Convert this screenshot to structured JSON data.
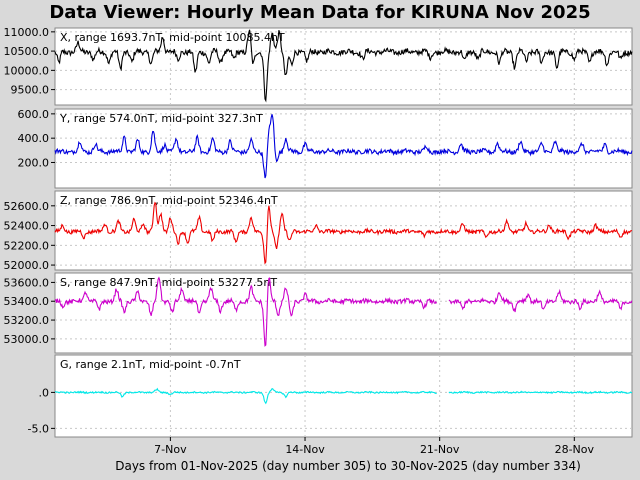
{
  "title": "Data Viewer:  Hourly Mean Data for KIRUNA Nov 2025",
  "xlabel": "Days from 01-Nov-2025 (day number 305) to 30-Nov-2025 (day number 334)",
  "chart_data": {
    "type": "line",
    "x_ticks": [
      "7-Nov",
      "14-Nov",
      "21-Nov",
      "28-Nov"
    ],
    "x_tick_days": [
      7,
      14,
      21,
      28
    ],
    "x_range_days": [
      1,
      31
    ],
    "grid": true,
    "panels": [
      {
        "name": "X",
        "label": "X, range 1693.7nT, mid-point 10085.4nT",
        "color": "#000000",
        "ylim": [
          9100,
          11100
        ],
        "yticks": [
          9500,
          10000,
          10500,
          11000
        ],
        "ytick_labels": [
          "9500.0",
          "10000.0",
          "10500.0",
          "11000.0"
        ],
        "baseline": 10480,
        "spikes": [
          [
            1.2,
            -300
          ],
          [
            2.2,
            220
          ],
          [
            3.0,
            -200
          ],
          [
            3.8,
            -280
          ],
          [
            4.4,
            -450
          ],
          [
            5.0,
            -260
          ],
          [
            6.0,
            -300
          ],
          [
            6.6,
            400
          ],
          [
            7.4,
            -200
          ],
          [
            8.3,
            -550
          ],
          [
            9.0,
            -300
          ],
          [
            9.6,
            -280
          ],
          [
            10.3,
            -200
          ],
          [
            11.1,
            550
          ],
          [
            11.3,
            -350
          ],
          [
            11.95,
            -1230
          ],
          [
            12.3,
            450
          ],
          [
            12.65,
            520
          ],
          [
            13.0,
            -650
          ],
          [
            13.3,
            -350
          ],
          [
            14.1,
            -250
          ],
          [
            17.0,
            -180
          ],
          [
            20.5,
            -150
          ],
          [
            22.3,
            -250
          ],
          [
            23.0,
            -200
          ],
          [
            24.1,
            -300
          ],
          [
            24.9,
            -400
          ],
          [
            25.5,
            -250
          ],
          [
            26.3,
            -300
          ],
          [
            27.1,
            -420
          ],
          [
            28.0,
            -200
          ],
          [
            28.8,
            -260
          ],
          [
            29.7,
            -300
          ],
          [
            30.4,
            -200
          ]
        ],
        "noise": 70,
        "gaps": []
      },
      {
        "name": "Y",
        "label": "Y, range 574.0nT, mid-point 327.3nT",
        "color": "#0000dd",
        "ylim": [
          -10,
          640
        ],
        "yticks": [
          200,
          400,
          600
        ],
        "ytick_labels": [
          "200.0",
          "400.0",
          "600.0"
        ],
        "baseline": 290,
        "spikes": [
          [
            2.3,
            80
          ],
          [
            3.1,
            60
          ],
          [
            4.6,
            120
          ],
          [
            5.3,
            90
          ],
          [
            6.1,
            170
          ],
          [
            6.7,
            60
          ],
          [
            7.3,
            100
          ],
          [
            8.4,
            110
          ],
          [
            9.2,
            100
          ],
          [
            10.1,
            80
          ],
          [
            11.2,
            90
          ],
          [
            11.95,
            -250
          ],
          [
            12.1,
            180
          ],
          [
            12.3,
            300
          ],
          [
            12.5,
            -80
          ],
          [
            13.0,
            110
          ],
          [
            14.0,
            60
          ],
          [
            20.3,
            40
          ],
          [
            22.1,
            60
          ],
          [
            24.0,
            70
          ],
          [
            25.2,
            80
          ],
          [
            26.3,
            60
          ],
          [
            27.0,
            80
          ],
          [
            28.4,
            60
          ],
          [
            29.6,
            60
          ]
        ],
        "noise": 18,
        "gaps": []
      },
      {
        "name": "Z",
        "label": "Z, range 786.9nT, mid-point 52346.4nT",
        "color": "#ee0000",
        "ylim": [
          51950,
          52750
        ],
        "yticks": [
          52000,
          52200,
          52400,
          52600
        ],
        "ytick_labels": [
          "52000.0",
          "52200.0",
          "52400.0",
          "52600.0"
        ],
        "baseline": 52340,
        "spikes": [
          [
            1.4,
            60
          ],
          [
            2.5,
            -60
          ],
          [
            3.6,
            80
          ],
          [
            4.3,
            100
          ],
          [
            5.1,
            120
          ],
          [
            5.6,
            80
          ],
          [
            6.2,
            300
          ],
          [
            6.5,
            180
          ],
          [
            7.0,
            140
          ],
          [
            7.4,
            -120
          ],
          [
            7.9,
            -110
          ],
          [
            8.5,
            140
          ],
          [
            9.2,
            -100
          ],
          [
            10.4,
            -110
          ],
          [
            11.2,
            140
          ],
          [
            11.95,
            -360
          ],
          [
            12.1,
            300
          ],
          [
            12.5,
            -170
          ],
          [
            12.8,
            180
          ],
          [
            13.2,
            -100
          ],
          [
            14.6,
            60
          ],
          [
            20.2,
            -50
          ],
          [
            22.2,
            70
          ],
          [
            23.4,
            -60
          ],
          [
            24.5,
            110
          ],
          [
            25.5,
            80
          ],
          [
            26.7,
            70
          ],
          [
            27.7,
            -60
          ],
          [
            29.1,
            60
          ],
          [
            30.4,
            -60
          ]
        ],
        "noise": 18,
        "gaps": []
      },
      {
        "name": "S",
        "label": "S, range 847.9nT, mid-point 53277.5nT",
        "color": "#cc00cc",
        "ylim": [
          52850,
          53700
        ],
        "yticks": [
          53000,
          53200,
          53400,
          53600
        ],
        "ytick_labels": [
          "53000.0",
          "53200.0",
          "53400.0",
          "53600.0"
        ],
        "baseline": 53400,
        "spikes": [
          [
            1.4,
            -60
          ],
          [
            2.6,
            100
          ],
          [
            3.3,
            -90
          ],
          [
            4.2,
            120
          ],
          [
            4.6,
            -110
          ],
          [
            5.3,
            90
          ],
          [
            6.0,
            -150
          ],
          [
            6.4,
            260
          ],
          [
            7.1,
            -120
          ],
          [
            7.6,
            140
          ],
          [
            8.5,
            -140
          ],
          [
            9.1,
            140
          ],
          [
            9.6,
            -100
          ],
          [
            10.4,
            -100
          ],
          [
            11.2,
            140
          ],
          [
            11.95,
            -530
          ],
          [
            12.1,
            320
          ],
          [
            12.6,
            -140
          ],
          [
            13.0,
            140
          ],
          [
            13.3,
            -170
          ],
          [
            14.0,
            70
          ],
          [
            20.2,
            -70
          ],
          [
            22.2,
            -90
          ],
          [
            24.1,
            100
          ],
          [
            24.9,
            -90
          ],
          [
            25.6,
            80
          ],
          [
            26.4,
            -100
          ],
          [
            27.2,
            90
          ],
          [
            28.3,
            -80
          ],
          [
            29.3,
            90
          ],
          [
            30.4,
            -90
          ]
        ],
        "noise": 22,
        "gaps": [
          [
            20.85,
            21.45
          ]
        ]
      },
      {
        "name": "G",
        "label": "G, range 2.1nT, mid-point -0.7nT",
        "color": "#00e8e8",
        "ylim": [
          -6.2,
          5.2
        ],
        "yticks": [
          -5.0,
          0.0
        ],
        "ytick_labels": [
          "-5.0",
          ".0"
        ],
        "baseline": 0.0,
        "spikes": [
          [
            4.5,
            -0.6
          ],
          [
            6.3,
            0.4
          ],
          [
            7.0,
            -0.3
          ],
          [
            11.95,
            -1.5
          ],
          [
            12.3,
            0.5
          ],
          [
            13.0,
            -0.6
          ],
          [
            21.0,
            -0.3
          ]
        ],
        "noise": 0.1,
        "gaps": [
          [
            20.85,
            21.45
          ]
        ]
      }
    ]
  }
}
